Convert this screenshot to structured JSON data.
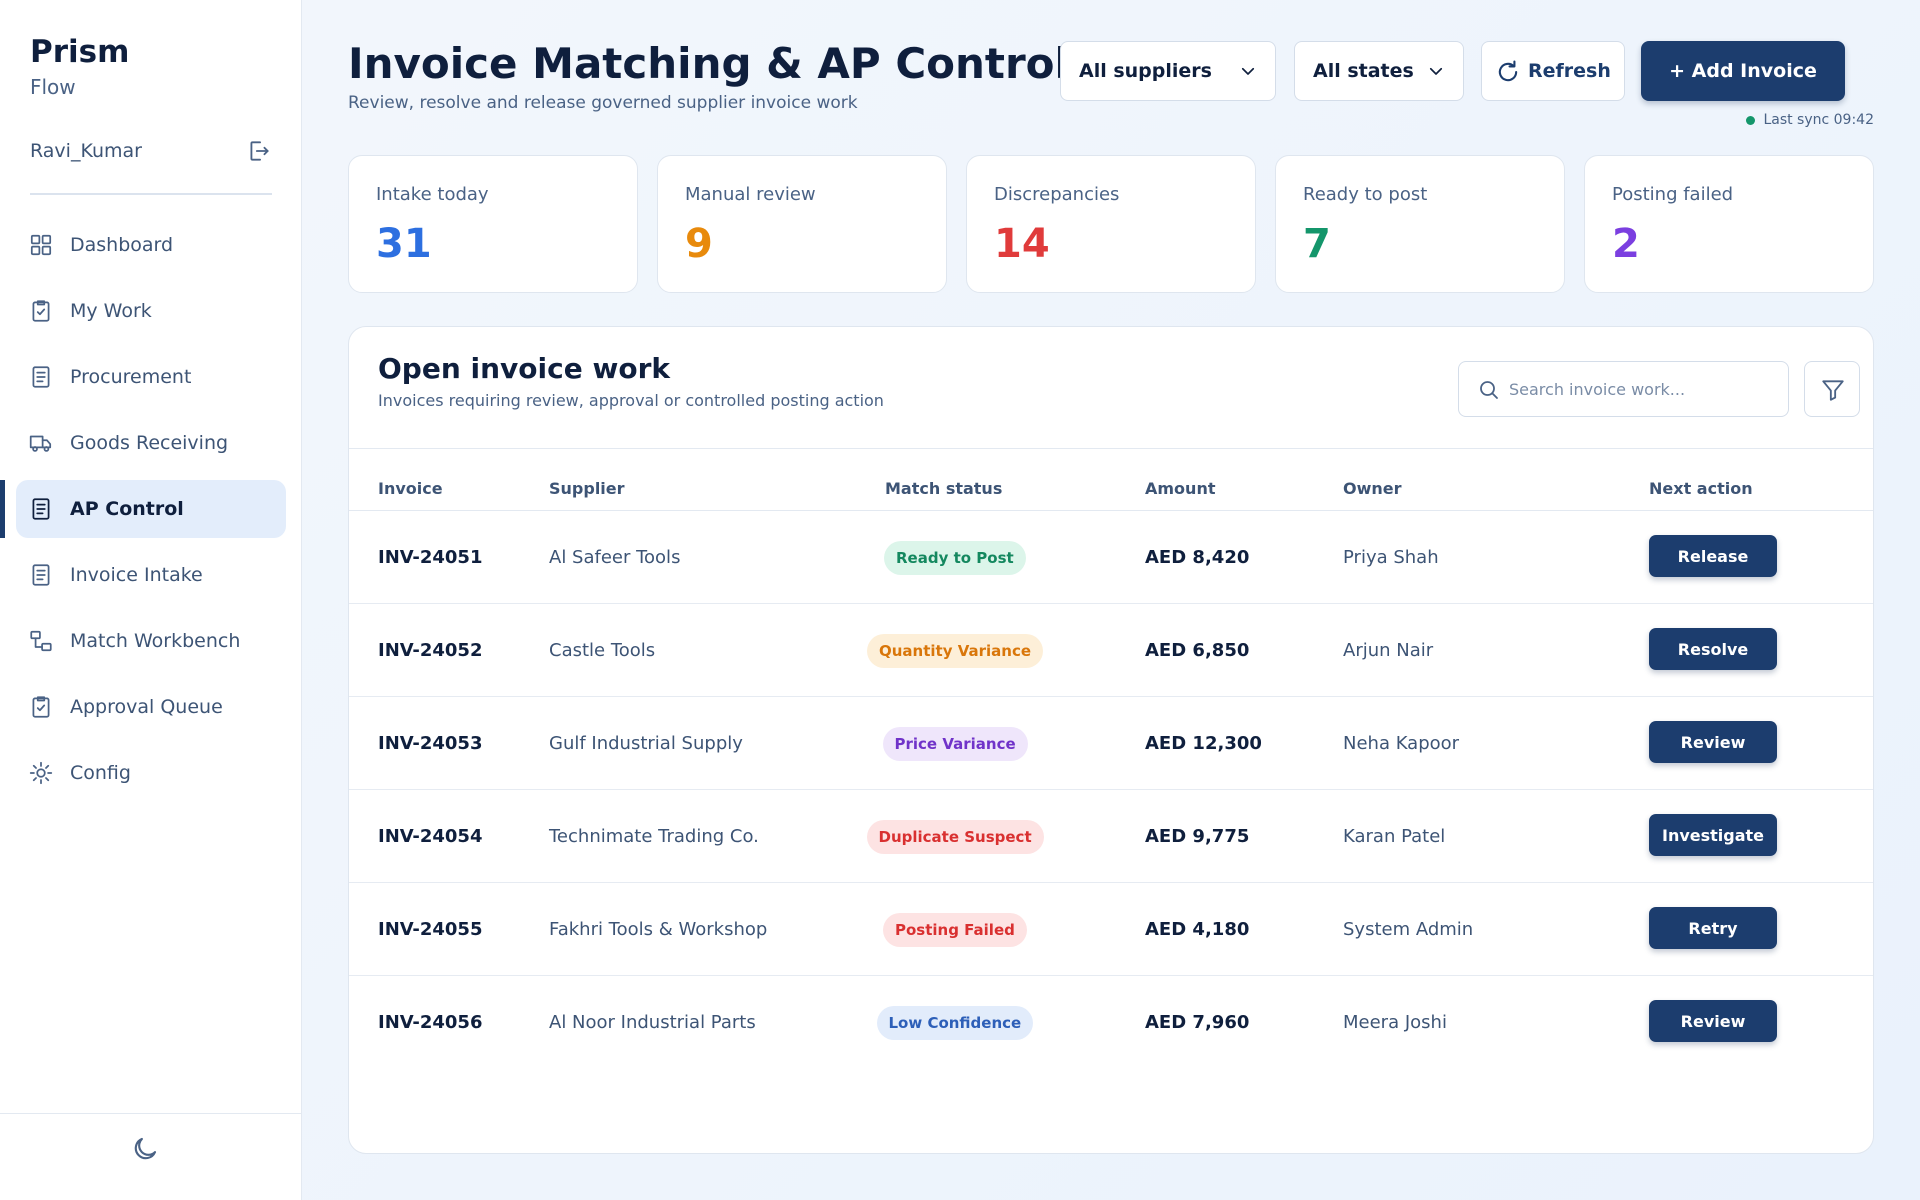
{
  "app": {
    "brand": "Prism",
    "brand_sub": "Flow",
    "user": "Ravi_Kumar"
  },
  "nav": [
    {
      "label": "Dashboard",
      "icon": "grid-icon"
    },
    {
      "label": "My Work",
      "icon": "clipboard-check-icon"
    },
    {
      "label": "Procurement",
      "icon": "document-icon"
    },
    {
      "label": "Goods Receiving",
      "icon": "truck-icon"
    },
    {
      "label": "AP Control",
      "icon": "document-icon",
      "active": true
    },
    {
      "label": "Invoice Intake",
      "icon": "document-icon"
    },
    {
      "label": "Match Workbench",
      "icon": "match-icon"
    },
    {
      "label": "Approval Queue",
      "icon": "clipboard-check-icon"
    },
    {
      "label": "Config",
      "icon": "gear-icon"
    }
  ],
  "header": {
    "title": "Invoice Matching & AP Control",
    "subtitle": "Review, resolve and release governed supplier invoice work",
    "supplier_filter": "All suppliers",
    "state_filter": "All states",
    "refresh_label": "Refresh",
    "add_label": "+ Add Invoice",
    "sync_text": "Last sync 09:42"
  },
  "kpis": [
    {
      "label": "Intake today",
      "value": "31",
      "color": "#2d6fe0"
    },
    {
      "label": "Manual review",
      "value": "9",
      "color": "#e88a0c"
    },
    {
      "label": "Discrepancies",
      "value": "14",
      "color": "#e03b3b"
    },
    {
      "label": "Ready to post",
      "value": "7",
      "color": "#14966b"
    },
    {
      "label": "Posting failed",
      "value": "2",
      "color": "#7b3fe0"
    }
  ],
  "panel": {
    "title": "Open invoice work",
    "subtitle": "Invoices requiring review, approval or controlled posting action",
    "search_placeholder": "Search invoice work...",
    "columns": [
      "Invoice",
      "Supplier",
      "Match status",
      "Amount",
      "Owner",
      "Next action"
    ],
    "rows": [
      {
        "invoice": "INV-24051",
        "supplier": "Al Safeer Tools",
        "status": "Ready to Post",
        "status_fg": "#14885f",
        "status_bg": "#dcf5ea",
        "amount": "AED 8,420",
        "owner": "Priya Shah",
        "action": "Release"
      },
      {
        "invoice": "INV-24052",
        "supplier": "Castle Tools",
        "status": "Quantity Variance",
        "status_fg": "#d9760a",
        "status_bg": "#fdefd8",
        "amount": "AED 6,850",
        "owner": "Arjun Nair",
        "action": "Resolve"
      },
      {
        "invoice": "INV-24053",
        "supplier": "Gulf Industrial Supply",
        "status": "Price Variance",
        "status_fg": "#7033c9",
        "status_bg": "#efe6fb",
        "amount": "AED 12,300",
        "owner": "Neha Kapoor",
        "action": "Review"
      },
      {
        "invoice": "INV-24054",
        "supplier": "Technimate Trading Co.",
        "status": "Duplicate Suspect",
        "status_fg": "#d93030",
        "status_bg": "#fde3e3",
        "amount": "AED 9,775",
        "owner": "Karan Patel",
        "action": "Investigate"
      },
      {
        "invoice": "INV-24055",
        "supplier": "Fakhri Tools & Workshop",
        "status": "Posting Failed",
        "status_fg": "#d93030",
        "status_bg": "#fde3e3",
        "amount": "AED 4,180",
        "owner": "System Admin",
        "action": "Retry"
      },
      {
        "invoice": "INV-24056",
        "supplier": "Al Noor Industrial Parts",
        "status": "Low Confidence",
        "status_fg": "#2d5fb8",
        "status_bg": "#e2ecfb",
        "amount": "AED 7,960",
        "owner": "Meera Joshi",
        "action": "Review"
      }
    ]
  }
}
